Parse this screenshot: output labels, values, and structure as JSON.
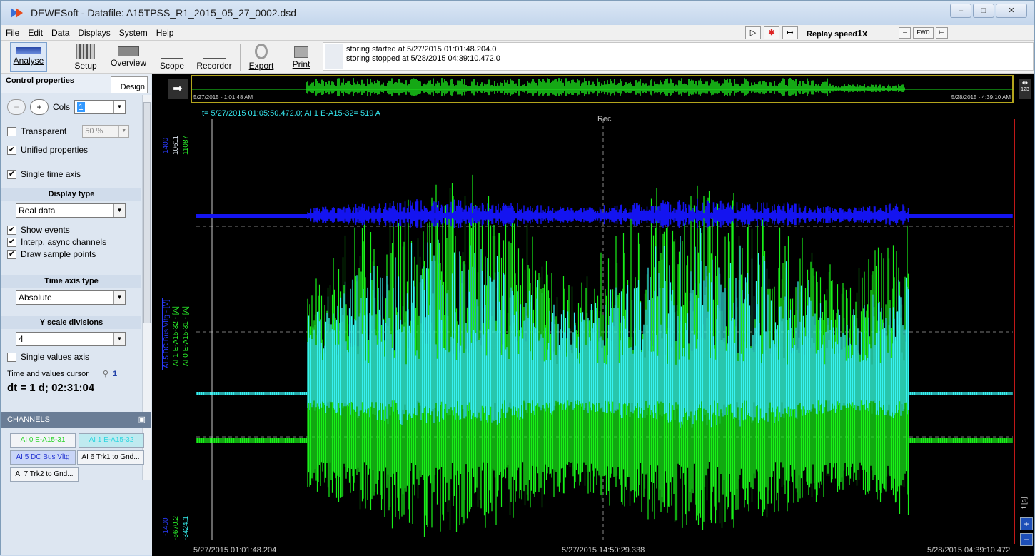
{
  "window": {
    "title": "DEWESoft - Datafile: A15TPSS_R1_2015_05_27_0002.dsd",
    "controls": [
      "–",
      "□",
      "✕"
    ]
  },
  "menu": {
    "items": [
      "File",
      "Edit",
      "Data",
      "Displays",
      "System",
      "Help"
    ],
    "replay_label": "Replay speed",
    "replay_value": "1x",
    "nav_buttons": [
      "⊣",
      "FWD",
      "⊢"
    ]
  },
  "toolbar": {
    "analyse": "Analyse",
    "setup": "Setup",
    "overview": "Overview",
    "scope": "Scope",
    "recorder": "Recorder",
    "export": "Export",
    "print": "Print",
    "storing_started": "storing started at 5/27/2015 01:01:48.204.0",
    "storing_stopped": "storing stopped at 5/28/2015 04:39:10.472.0"
  },
  "control_panel": {
    "title": "Control properties",
    "design": "Design",
    "cols_label": "Cols",
    "cols_value": "1",
    "transparent": "Transparent",
    "transparent_value": "50 %",
    "unified": "Unified properties",
    "single_time_axis": "Single time axis",
    "display_type_title": "Display type",
    "display_type_value": "Real data",
    "show_events": "Show events",
    "interp": "Interp. async channels",
    "draw_points": "Draw sample points",
    "time_axis_title": "Time axis type",
    "time_axis_value": "Absolute",
    "y_div_title": "Y scale divisions",
    "y_div_value": "4",
    "single_values_axis": "Single values axis",
    "cursor_label": "Time and values cursor",
    "cursor_value": "1",
    "dt": "dt = 1 d; 02:31:04"
  },
  "channels": {
    "header": "CHANNELS",
    "items": [
      "AI 0 E-A15-31",
      "AI 1 E-A15-32",
      "AI 5 DC Bus Vltg",
      "AI 6 Trk1 to Gnd...",
      "AI 7 Trk2 to Gnd..."
    ]
  },
  "display": {
    "overview_start": "5/27/2015 - 1:01:48 AM",
    "overview_end": "5/28/2015 - 4:39:10 AM",
    "cursor_info": "t= 5/27/2015 01:05:50.472.0; AI 1 E-A15-32= 519 A",
    "rec_label": "Rec",
    "y_top_blue": "1400",
    "y_top_green": "10611",
    "y_top_cyan": "11087",
    "y_bot_blue": "-1400",
    "y_bot_green": "-5670.2",
    "y_bot_cyan": "-3424.1",
    "y_axis_label_blue": "AI 5 DC Bus Vltg - [V]",
    "y_axis_label_green": "AI 1 E-A15-32 - [A]",
    "y_axis_label_cyan": "AI 0 E-A15-31 - [A]",
    "x_start": "5/27/2015 01:01:48.204",
    "x_mid": "5/27/2015 14:50:29.338",
    "x_end": "5/28/2015 04:39:10.472",
    "t_s": "t [s]",
    "overview_right": "123",
    "colors": {
      "blue": "#1414f0",
      "green": "#19f019",
      "cyan": "#37f2f2",
      "overview": "#1ce01c",
      "rec_line": "#ff2020"
    }
  }
}
